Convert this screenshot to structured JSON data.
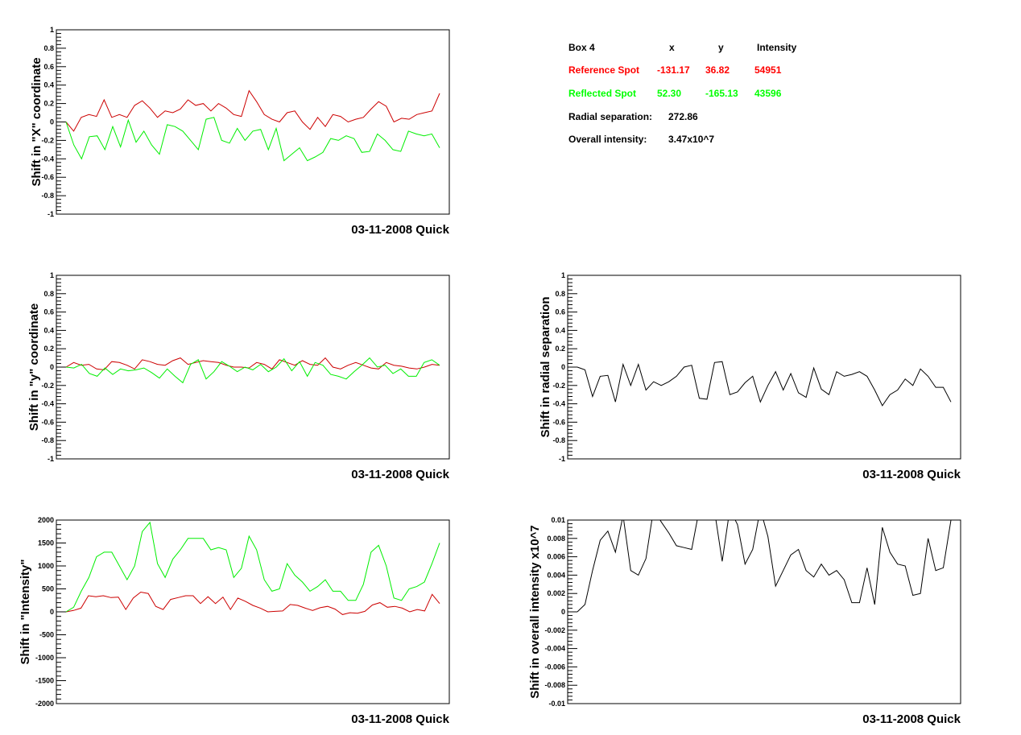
{
  "info": {
    "header": {
      "box": "Box 4",
      "x": "x",
      "y": "y",
      "intensity": "Intensity"
    },
    "reference": {
      "label": "Reference Spot",
      "x": "-131.17",
      "y": "36.82",
      "intensity": "54951",
      "color": "#ff0000"
    },
    "reflected": {
      "label": "Reflected Spot",
      "x": "52.30",
      "y": "-165.13",
      "intensity": "43596",
      "color": "#00ff00"
    },
    "radial": {
      "label": "Radial separation:",
      "value": "272.86"
    },
    "overall": {
      "label": "Overall intensity:",
      "value": "3.47x10^7"
    }
  },
  "chart_data": [
    {
      "type": "line",
      "ylabel": "Shift in \"X\" coordinate",
      "footer": "03-11-2008 Quick",
      "ylim": [
        -1,
        1
      ],
      "yticks": [
        "-1",
        "-0.8",
        "-0.6",
        "-0.4",
        "-0.2",
        "0",
        "0.2",
        "0.4",
        "0.6",
        "0.8",
        "1"
      ],
      "series": [
        {
          "color": "#cc0000",
          "values": [
            0,
            -0.1,
            0.05,
            0.08,
            0.06,
            0.24,
            0.05,
            0.08,
            0.05,
            0.18,
            0.23,
            0.15,
            0.05,
            0.12,
            0.1,
            0.14,
            0.24,
            0.18,
            0.2,
            0.12,
            0.2,
            0.15,
            0.08,
            0.06,
            0.34,
            0.22,
            0.08,
            0.03,
            0.0,
            0.1,
            0.12,
            0.0,
            -0.08,
            0.05,
            -0.05,
            0.08,
            0.06,
            0.0,
            0.03,
            0.05,
            0.14,
            0.22,
            0.17,
            0.0,
            0.04,
            0.03,
            0.08,
            0.1,
            0.12,
            0.31
          ]
        },
        {
          "color": "#00ee00",
          "values": [
            0,
            -0.25,
            -0.4,
            -0.16,
            -0.15,
            -0.3,
            -0.05,
            -0.27,
            0.02,
            -0.22,
            -0.1,
            -0.25,
            -0.35,
            -0.03,
            -0.05,
            -0.1,
            -0.2,
            -0.3,
            0.03,
            0.05,
            -0.2,
            -0.23,
            -0.07,
            -0.2,
            -0.1,
            -0.08,
            -0.3,
            -0.07,
            -0.42,
            -0.35,
            -0.28,
            -0.42,
            -0.38,
            -0.33,
            -0.18,
            -0.2,
            -0.15,
            -0.18,
            -0.33,
            -0.32,
            -0.13,
            -0.2,
            -0.3,
            -0.32,
            -0.1,
            -0.13,
            -0.15,
            -0.13,
            -0.28
          ]
        }
      ]
    },
    {
      "type": "line",
      "ylabel": "Shift in \"y\" coordinate",
      "footer": "03-11-2008 Quick",
      "ylim": [
        -1,
        1
      ],
      "yticks": [
        "-1",
        "-0.8",
        "-0.6",
        "-0.4",
        "-0.2",
        "0",
        "0.2",
        "0.4",
        "0.6",
        "0.8",
        "1"
      ],
      "series": [
        {
          "color": "#cc0000",
          "values": [
            0,
            0.05,
            0.02,
            0.03,
            -0.02,
            -0.03,
            0.06,
            0.05,
            0.02,
            -0.02,
            0.08,
            0.06,
            0.03,
            0.02,
            0.07,
            0.1,
            0.03,
            0.05,
            0.07,
            0.06,
            0.05,
            0.02,
            0.0,
            0.0,
            -0.01,
            0.05,
            0.03,
            -0.02,
            0.08,
            0.05,
            0.02,
            0.07,
            0.03,
            0.02,
            0.1,
            0.0,
            -0.02,
            0.02,
            0.05,
            0.02,
            -0.01,
            -0.02,
            0.05,
            0.02,
            0.01,
            -0.01,
            -0.02,
            0.0,
            0.03,
            0.02
          ]
        },
        {
          "color": "#00ee00",
          "values": [
            0,
            -0.01,
            0.03,
            -0.07,
            -0.1,
            -0.01,
            -0.08,
            -0.02,
            -0.04,
            -0.03,
            -0.01,
            -0.06,
            -0.12,
            -0.02,
            -0.1,
            -0.17,
            0.03,
            0.08,
            -0.13,
            -0.05,
            0.06,
            0.01,
            -0.05,
            0.0,
            -0.03,
            0.03,
            -0.05,
            0.0,
            0.09,
            -0.04,
            0.06,
            -0.1,
            0.05,
            0.02,
            -0.08,
            -0.1,
            -0.13,
            -0.05,
            0.02,
            0.1,
            0.0,
            0.02,
            -0.07,
            -0.02,
            -0.1,
            -0.1,
            0.05,
            0.08,
            0.02
          ]
        }
      ]
    },
    {
      "type": "line",
      "ylabel": "Shift in radial separation",
      "footer": "03-11-2008 Quick",
      "ylim": [
        -1,
        1
      ],
      "yticks": [
        "-1",
        "-0.8",
        "-0.6",
        "-0.4",
        "-0.2",
        "0",
        "0.2",
        "0.4",
        "0.6",
        "0.8",
        "1"
      ],
      "series": [
        {
          "color": "#000000",
          "values": [
            0,
            -0.03,
            -0.32,
            -0.1,
            -0.09,
            -0.38,
            0.03,
            -0.2,
            0.03,
            -0.25,
            -0.16,
            -0.2,
            -0.16,
            -0.1,
            0.0,
            0.02,
            -0.34,
            -0.35,
            0.05,
            0.06,
            -0.3,
            -0.27,
            -0.17,
            -0.1,
            -0.38,
            -0.2,
            -0.05,
            -0.25,
            -0.07,
            -0.28,
            -0.33,
            -0.01,
            -0.24,
            -0.3,
            -0.05,
            -0.1,
            -0.08,
            -0.05,
            -0.1,
            -0.25,
            -0.42,
            -0.3,
            -0.25,
            -0.13,
            -0.2,
            -0.02,
            -0.1,
            -0.22,
            -0.22,
            -0.38
          ]
        }
      ]
    },
    {
      "type": "line",
      "ylabel": "Shift in \"Intensity\"",
      "footer": "03-11-2008 Quick",
      "ylim": [
        -2000,
        2000
      ],
      "yticks": [
        "-2000",
        "-1500",
        "-1000",
        "-500",
        "0",
        "500",
        "1000",
        "1500",
        "2000"
      ],
      "series": [
        {
          "color": "#cc0000",
          "values": [
            0,
            30,
            80,
            350,
            330,
            350,
            310,
            320,
            50,
            300,
            430,
            400,
            120,
            50,
            270,
            310,
            350,
            350,
            180,
            330,
            180,
            320,
            50,
            300,
            230,
            140,
            80,
            0,
            10,
            20,
            160,
            140,
            80,
            30,
            90,
            120,
            60,
            -60,
            -20,
            -30,
            10,
            150,
            200,
            100,
            120,
            80,
            0,
            50,
            20,
            380,
            180
          ]
        },
        {
          "color": "#00ee00",
          "values": [
            0,
            100,
            450,
            750,
            1200,
            1300,
            1300,
            1000,
            700,
            1000,
            1750,
            1950,
            1050,
            750,
            1150,
            1350,
            1600,
            1600,
            1600,
            1350,
            1400,
            1350,
            750,
            950,
            1650,
            1350,
            700,
            450,
            500,
            1050,
            800,
            650,
            450,
            550,
            700,
            450,
            450,
            250,
            250,
            600,
            1300,
            1450,
            1000,
            300,
            250,
            500,
            550,
            650,
            1050,
            1500
          ]
        }
      ]
    },
    {
      "type": "line",
      "ylabel": "Shift in overall intensity x10^7",
      "footer": "03-11-2008 Quick",
      "ylim": [
        -0.01,
        0.01
      ],
      "yticks": [
        "-0.01",
        "-0.008",
        "-0.006",
        "-0.004",
        "-0.002",
        "0",
        "0.002",
        "0.004",
        "0.006",
        "0.008",
        "0.01"
      ],
      "series": [
        {
          "color": "#000000",
          "values": [
            0,
            0.0008,
            0.0045,
            0.0078,
            0.0088,
            0.0065,
            0.0105,
            0.0045,
            0.004,
            0.0058,
            0.0112,
            0.0098,
            0.0086,
            0.0072,
            0.007,
            0.0068,
            0.0112,
            0.0115,
            0.011,
            0.0055,
            0.0112,
            0.0095,
            0.0052,
            0.0068,
            0.0112,
            0.0082,
            0.0028,
            0.0045,
            0.0062,
            0.0068,
            0.0045,
            0.0038,
            0.0052,
            0.004,
            0.0045,
            0.0035,
            0.001,
            0.001,
            0.0048,
            0.0008,
            0.0092,
            0.0065,
            0.0052,
            0.005,
            0.0018,
            0.002,
            0.008,
            0.0045,
            0.0048,
            0.01
          ]
        }
      ]
    }
  ]
}
